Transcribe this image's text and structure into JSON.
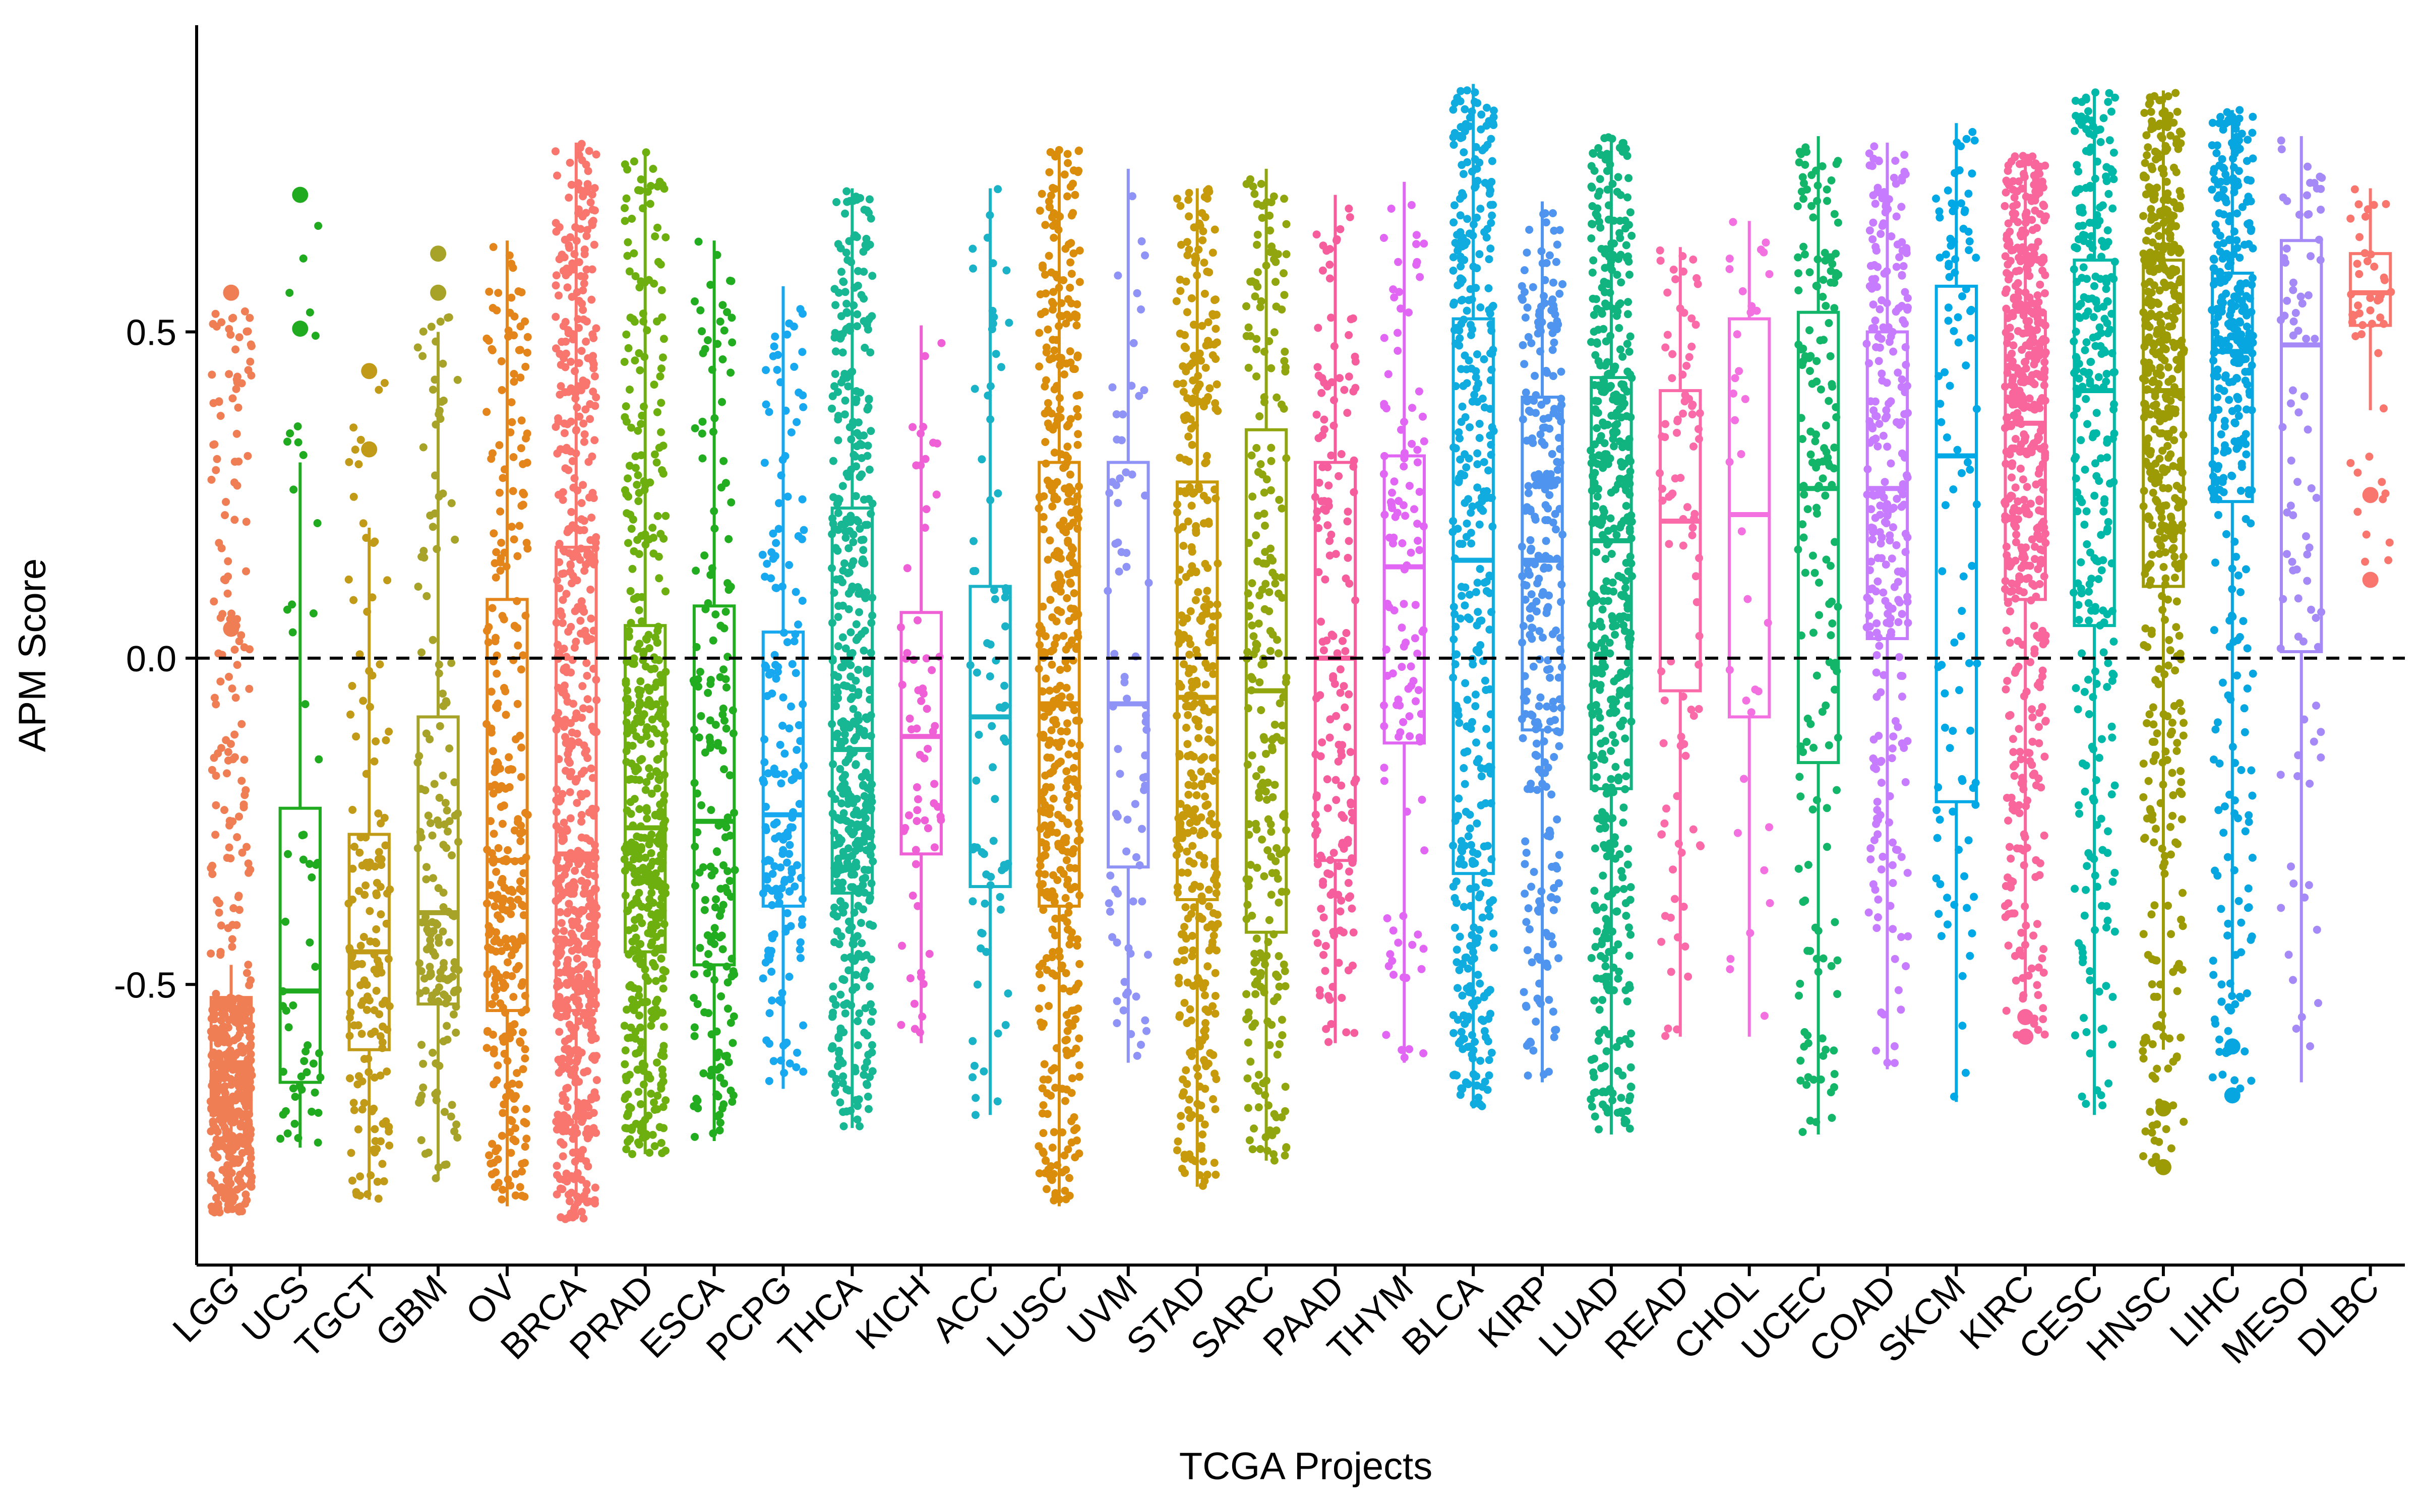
{
  "chart_data": {
    "type": "boxplot",
    "title": "",
    "xlabel": "TCGA Projects",
    "ylabel": "APM Score",
    "ylim": [
      -0.93,
      0.97
    ],
    "yticks": [
      -0.5,
      0.0,
      0.5
    ],
    "ytick_labels": [
      "-0.5",
      "0.0",
      "0.5"
    ],
    "reference_line": {
      "y": 0.0,
      "style": "dashed",
      "color": "#000000"
    },
    "points_overlay": "jittered",
    "legend": "none",
    "categories": [
      "LGG",
      "UCS",
      "TGCT",
      "GBM",
      "OV",
      "BRCA",
      "PRAD",
      "ESCA",
      "PCPG",
      "THCA",
      "KICH",
      "ACC",
      "LUSC",
      "UVM",
      "STAD",
      "SARC",
      "PAAD",
      "THYM",
      "BLCA",
      "KIRP",
      "LUAD",
      "READ",
      "CHOL",
      "UCEC",
      "COAD",
      "SKCM",
      "KIRC",
      "CESC",
      "HNSC",
      "LIHC",
      "MESO",
      "DLBC"
    ],
    "colors": [
      "#F07E55",
      "#20AA1F",
      "#C19A17",
      "#A7A228",
      "#E3851A",
      "#F8766D",
      "#6CAF0F",
      "#22AD20",
      "#18A8F0",
      "#17B793",
      "#EF5FD5",
      "#19B2C7",
      "#DA8C0B",
      "#8E93F5",
      "#C79A0C",
      "#91A50E",
      "#F65D9D",
      "#E066F3",
      "#10ACDF",
      "#4F95EF",
      "#11B47F",
      "#FA6AA8",
      "#F370E0",
      "#13B668",
      "#C77CFF",
      "#00A9E6",
      "#F8669B",
      "#00B8A8",
      "#9C9A05",
      "#07A6E0",
      "#A58AF7",
      "#F8766D"
    ],
    "series": [
      {
        "name": "LGG",
        "n": 530,
        "min": -0.85,
        "q1": -0.7,
        "median": -0.62,
        "q3": -0.52,
        "max": -0.47,
        "wmin": -0.85,
        "wmax": -0.47,
        "dmin": -0.85,
        "dmax": 0.56
      },
      {
        "name": "UCS",
        "n": 57,
        "min": -0.75,
        "q1": -0.65,
        "median": -0.51,
        "q3": -0.23,
        "max": 0.3,
        "wmin": -0.75,
        "wmax": 0.3,
        "dmin": -0.75,
        "dmax": 0.71
      },
      {
        "name": "TGCT",
        "n": 156,
        "min": -0.83,
        "q1": -0.6,
        "median": -0.45,
        "q3": -0.27,
        "max": 0.2,
        "wmin": -0.83,
        "wmax": 0.2,
        "dmin": -0.83,
        "dmax": 0.44
      },
      {
        "name": "GBM",
        "n": 166,
        "min": -0.8,
        "q1": -0.53,
        "median": -0.39,
        "q3": -0.09,
        "max": 0.5,
        "wmin": -0.8,
        "wmax": 0.5,
        "dmin": -0.8,
        "dmax": 0.62
      },
      {
        "name": "OV",
        "n": 307,
        "min": -0.84,
        "q1": -0.54,
        "median": -0.31,
        "q3": 0.09,
        "max": 0.64,
        "wmin": -0.84,
        "wmax": 0.64,
        "dmin": -0.84,
        "dmax": 0.64
      },
      {
        "name": "BRCA",
        "n": 1100,
        "min": -0.86,
        "q1": -0.54,
        "median": -0.3,
        "q3": 0.17,
        "max": 0.79,
        "wmin": -0.86,
        "wmax": 0.79,
        "dmin": -0.86,
        "dmax": 0.79
      },
      {
        "name": "PRAD",
        "n": 498,
        "min": -0.76,
        "q1": -0.45,
        "median": -0.26,
        "q3": 0.05,
        "max": 0.78,
        "wmin": -0.76,
        "wmax": 0.78,
        "dmin": -0.76,
        "dmax": 0.78
      },
      {
        "name": "ESCA",
        "n": 185,
        "min": -0.74,
        "q1": -0.47,
        "median": -0.25,
        "q3": 0.08,
        "max": 0.64,
        "wmin": -0.74,
        "wmax": 0.64,
        "dmin": -0.74,
        "dmax": 0.64
      },
      {
        "name": "PCPG",
        "n": 184,
        "min": -0.66,
        "q1": -0.38,
        "median": -0.24,
        "q3": 0.04,
        "max": 0.57,
        "wmin": -0.66,
        "wmax": 0.57,
        "dmin": -0.66,
        "dmax": 0.57
      },
      {
        "name": "THCA",
        "n": 510,
        "min": -0.72,
        "q1": -0.36,
        "median": -0.14,
        "q3": 0.23,
        "max": 0.72,
        "wmin": -0.72,
        "wmax": 0.72,
        "dmin": -0.72,
        "dmax": 0.72
      },
      {
        "name": "KICH",
        "n": 66,
        "min": -0.59,
        "q1": -0.3,
        "median": -0.12,
        "q3": 0.07,
        "max": 0.51,
        "wmin": -0.59,
        "wmax": 0.51,
        "dmin": -0.59,
        "dmax": 0.51
      },
      {
        "name": "ACC",
        "n": 79,
        "min": -0.7,
        "q1": -0.35,
        "median": -0.09,
        "q3": 0.11,
        "max": 0.72,
        "wmin": -0.7,
        "wmax": 0.72,
        "dmin": -0.7,
        "dmax": 0.72
      },
      {
        "name": "LUSC",
        "n": 502,
        "min": -0.84,
        "q1": -0.38,
        "median": -0.07,
        "q3": 0.3,
        "max": 0.78,
        "wmin": -0.84,
        "wmax": 0.78,
        "dmin": -0.84,
        "dmax": 0.78
      },
      {
        "name": "UVM",
        "n": 80,
        "min": -0.62,
        "q1": -0.32,
        "median": -0.07,
        "q3": 0.3,
        "max": 0.75,
        "wmin": -0.62,
        "wmax": 0.75,
        "dmin": -0.62,
        "dmax": 0.75
      },
      {
        "name": "STAD",
        "n": 415,
        "min": -0.81,
        "q1": -0.37,
        "median": -0.06,
        "q3": 0.27,
        "max": 0.72,
        "wmin": -0.81,
        "wmax": 0.72,
        "dmin": -0.81,
        "dmax": 0.72
      },
      {
        "name": "SARC",
        "n": 263,
        "min": -0.77,
        "q1": -0.42,
        "median": -0.05,
        "q3": 0.35,
        "max": 0.75,
        "wmin": -0.77,
        "wmax": 0.75,
        "dmin": -0.77,
        "dmax": 0.75
      },
      {
        "name": "PAAD",
        "n": 179,
        "min": -0.59,
        "q1": -0.31,
        "median": 0.0,
        "q3": 0.3,
        "max": 0.71,
        "wmin": -0.59,
        "wmax": 0.71,
        "dmin": -0.59,
        "dmax": 0.71
      },
      {
        "name": "THYM",
        "n": 120,
        "min": -0.62,
        "q1": -0.13,
        "median": 0.14,
        "q3": 0.31,
        "max": 0.73,
        "wmin": -0.62,
        "wmax": 0.73,
        "dmin": -0.62,
        "dmax": 0.73
      },
      {
        "name": "BLCA",
        "n": 414,
        "min": -0.69,
        "q1": -0.33,
        "median": 0.15,
        "q3": 0.52,
        "max": 0.88,
        "wmin": -0.69,
        "wmax": 0.88,
        "dmin": -0.69,
        "dmax": 0.88
      },
      {
        "name": "KIRP",
        "n": 290,
        "min": -0.65,
        "q1": -0.11,
        "median": 0.15,
        "q3": 0.4,
        "max": 0.7,
        "wmin": -0.65,
        "wmax": 0.7,
        "dmin": -0.65,
        "dmax": 0.7
      },
      {
        "name": "LUAD",
        "n": 515,
        "min": -0.73,
        "q1": -0.2,
        "median": 0.18,
        "q3": 0.43,
        "max": 0.8,
        "wmin": -0.73,
        "wmax": 0.8,
        "dmin": -0.73,
        "dmax": 0.8
      },
      {
        "name": "READ",
        "n": 95,
        "min": -0.58,
        "q1": -0.05,
        "median": 0.21,
        "q3": 0.41,
        "max": 0.63,
        "wmin": -0.58,
        "wmax": 0.63,
        "dmin": -0.58,
        "dmax": 0.63
      },
      {
        "name": "CHOL",
        "n": 36,
        "min": -0.58,
        "q1": -0.09,
        "median": 0.22,
        "q3": 0.52,
        "max": 0.67,
        "wmin": -0.58,
        "wmax": 0.67,
        "dmin": -0.58,
        "dmax": 0.67
      },
      {
        "name": "UCEC",
        "n": 182,
        "min": -0.73,
        "q1": -0.16,
        "median": 0.26,
        "q3": 0.53,
        "max": 0.8,
        "wmin": -0.73,
        "wmax": 0.8,
        "dmin": -0.73,
        "dmax": 0.8
      },
      {
        "name": "COAD",
        "n": 285,
        "min": -0.63,
        "q1": 0.03,
        "median": 0.26,
        "q3": 0.5,
        "max": 0.79,
        "wmin": -0.63,
        "wmax": 0.79,
        "dmin": -0.63,
        "dmax": 0.79
      },
      {
        "name": "SKCM",
        "n": 103,
        "min": -0.68,
        "q1": -0.22,
        "median": 0.31,
        "q3": 0.57,
        "max": 0.82,
        "wmin": -0.68,
        "wmax": 0.82,
        "dmin": -0.68,
        "dmax": 0.82
      },
      {
        "name": "KIRC",
        "n": 533,
        "min": -0.52,
        "q1": 0.09,
        "median": 0.36,
        "q3": 0.53,
        "max": 0.77,
        "wmin": -0.52,
        "wmax": 0.77,
        "dmin": -0.58,
        "dmax": 0.77
      },
      {
        "name": "CESC",
        "n": 304,
        "min": -0.7,
        "q1": 0.05,
        "median": 0.41,
        "q3": 0.61,
        "max": 0.87,
        "wmin": -0.7,
        "wmax": 0.87,
        "dmin": -0.7,
        "dmax": 0.87
      },
      {
        "name": "HNSC",
        "n": 520,
        "min": -0.6,
        "q1": 0.11,
        "median": 0.41,
        "q3": 0.61,
        "max": 0.87,
        "wmin": -0.6,
        "wmax": 0.87,
        "dmin": -0.78,
        "dmax": 0.87
      },
      {
        "name": "LIHC",
        "n": 371,
        "min": -0.52,
        "q1": 0.24,
        "median": 0.47,
        "q3": 0.59,
        "max": 0.84,
        "wmin": -0.52,
        "wmax": 0.84,
        "dmin": -0.67,
        "dmax": 0.84
      },
      {
        "name": "MESO",
        "n": 87,
        "min": -0.65,
        "q1": 0.01,
        "median": 0.48,
        "q3": 0.64,
        "max": 0.8,
        "wmin": -0.65,
        "wmax": 0.8,
        "dmin": -0.65,
        "dmax": 0.8
      },
      {
        "name": "DLBC",
        "n": 48,
        "min": 0.38,
        "q1": 0.51,
        "median": 0.56,
        "q3": 0.62,
        "max": 0.72,
        "wmin": 0.38,
        "wmax": 0.72,
        "dmin": 0.12,
        "dmax": 0.72
      }
    ]
  }
}
